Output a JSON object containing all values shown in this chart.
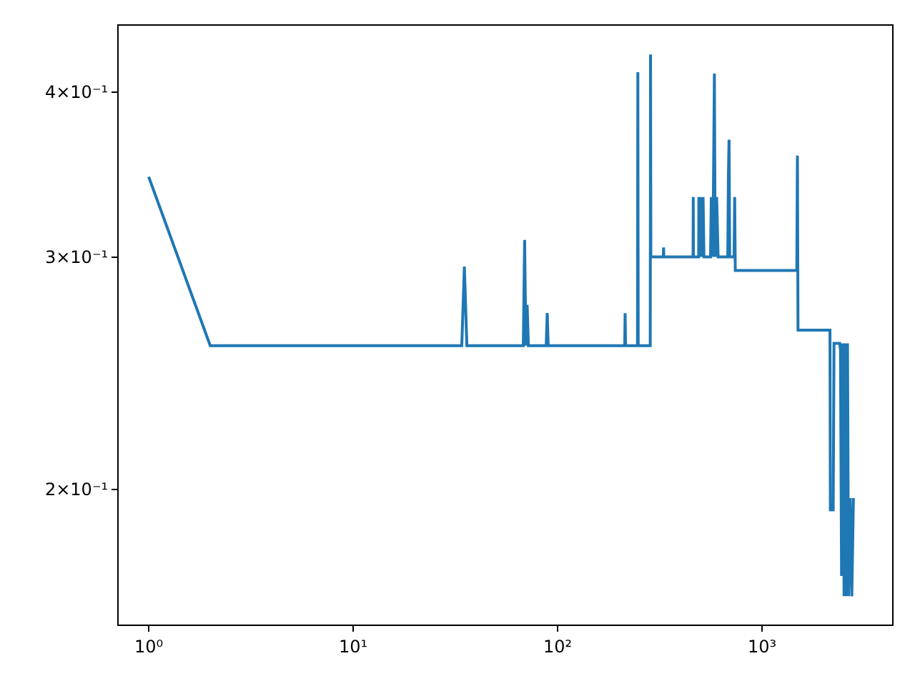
{
  "chart_data": {
    "type": "line",
    "log": "xy",
    "marker": "none",
    "line_style": "solid",
    "xlim": [
      0.713,
      4330
    ],
    "ylim": [
      0.158,
      0.449
    ],
    "xticks": [
      {
        "value": 1,
        "label": "10⁰"
      },
      {
        "value": 10,
        "label": "10¹"
      },
      {
        "value": 100,
        "label": "10²"
      },
      {
        "value": 1000,
        "label": "10³"
      }
    ],
    "yticks": [
      {
        "value": 0.2,
        "label": "2×10⁻¹"
      },
      {
        "value": 0.3,
        "label": "3×10⁻¹"
      },
      {
        "value": 0.4,
        "label": "4×10⁻¹"
      }
    ],
    "series": [
      {
        "color": "#1f77b4",
        "x": [
          1,
          2,
          34,
          35,
          36,
          68,
          69,
          70,
          71,
          72,
          88,
          89,
          90,
          213,
          214,
          215,
          246,
          247,
          248,
          284,
          285,
          286,
          329,
          330,
          331,
          460,
          461,
          462,
          490,
          491,
          492,
          500,
          505,
          515,
          520,
          560,
          565,
          575,
          585,
          590,
          600,
          610,
          680,
          685,
          690,
          695,
          730,
          735,
          740,
          1480,
          1490,
          1500,
          2150,
          2160,
          2230,
          2250,
          2400,
          2420,
          2450,
          2470,
          2500,
          2520,
          2550,
          2580,
          2620,
          2650,
          2700,
          2750,
          2800
        ],
        "values": [
          0.345,
          0.257,
          0.257,
          0.295,
          0.257,
          0.257,
          0.309,
          0.257,
          0.276,
          0.257,
          0.257,
          0.272,
          0.257,
          0.257,
          0.272,
          0.257,
          0.257,
          0.414,
          0.257,
          0.257,
          0.427,
          0.3,
          0.3,
          0.305,
          0.3,
          0.3,
          0.333,
          0.3,
          0.3,
          0.333,
          0.3,
          0.333,
          0.3,
          0.333,
          0.3,
          0.3,
          0.333,
          0.3,
          0.413,
          0.3,
          0.333,
          0.3,
          0.3,
          0.346,
          0.368,
          0.3,
          0.3,
          0.333,
          0.293,
          0.293,
          0.358,
          0.264,
          0.264,
          0.193,
          0.193,
          0.258,
          0.258,
          0.255,
          0.172,
          0.258,
          0.25,
          0.166,
          0.258,
          0.166,
          0.258,
          0.166,
          0.197,
          0.166,
          0.197
        ]
      }
    ]
  }
}
